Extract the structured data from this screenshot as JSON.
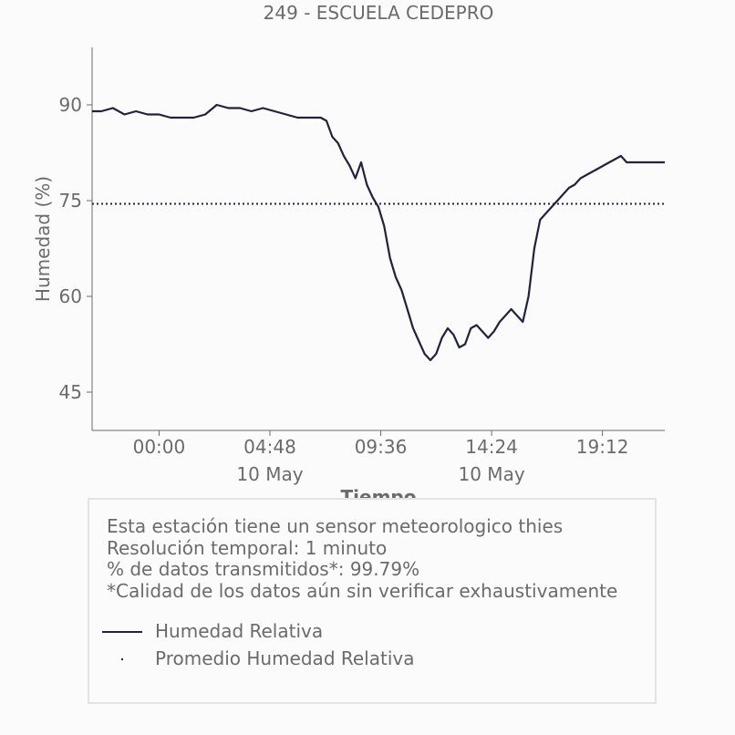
{
  "chart_data": {
    "type": "line",
    "title": "249 - ESCUELA CEDEPRO",
    "xlabel": "Tiempo",
    "ylabel": "Humedad (%)",
    "x_unit": "time of day (10 May)",
    "xlim": [
      "21:06",
      "21:54 (+1 day)"
    ],
    "ylim": [
      39,
      99
    ],
    "x_ticks": [
      "00:00",
      "04:48",
      "09:36",
      "14:24",
      "19:12"
    ],
    "x_tick_date_labels": [
      {
        "at": "04:48",
        "text": "10 May"
      },
      {
        "at": "14:24",
        "text": "10 May"
      }
    ],
    "y_ticks": [
      45,
      60,
      75,
      90
    ],
    "grid": false,
    "series": [
      {
        "name": "Humedad Relativa",
        "color": "#22223f",
        "style": "solid",
        "x": [
          "21:06",
          "21:30",
          "22:00",
          "22:30",
          "23:00",
          "23:30",
          "00:00",
          "00:30",
          "01:00",
          "01:30",
          "02:00",
          "02:30",
          "03:00",
          "03:30",
          "04:00",
          "04:30",
          "05:00",
          "05:30",
          "06:00",
          "06:30",
          "07:00",
          "07:15",
          "07:30",
          "07:45",
          "08:00",
          "08:15",
          "08:30",
          "08:45",
          "09:00",
          "09:15",
          "09:30",
          "09:45",
          "10:00",
          "10:15",
          "10:30",
          "10:45",
          "11:00",
          "11:15",
          "11:30",
          "11:45",
          "12:00",
          "12:15",
          "12:30",
          "12:45",
          "13:00",
          "13:15",
          "13:30",
          "13:45",
          "14:00",
          "14:15",
          "14:30",
          "14:45",
          "15:00",
          "15:15",
          "15:30",
          "15:45",
          "16:00",
          "16:15",
          "16:30",
          "16:45",
          "17:00",
          "17:15",
          "17:30",
          "17:45",
          "18:00",
          "18:15",
          "18:30",
          "18:45",
          "19:00",
          "19:15",
          "19:30",
          "19:45",
          "20:00",
          "20:15",
          "20:30",
          "20:45",
          "21:00",
          "21:15",
          "21:30",
          "21:54"
        ],
        "values": [
          89,
          89,
          89.5,
          88.5,
          89,
          88.5,
          88.5,
          88,
          88,
          88,
          88.5,
          90,
          89.5,
          89.5,
          89,
          89.5,
          89,
          88.5,
          88,
          88,
          88,
          87.5,
          85,
          84,
          82,
          80.5,
          78.5,
          81,
          77.5,
          75.5,
          74,
          71,
          66,
          63,
          61,
          58,
          55,
          53,
          51,
          50,
          51,
          53.5,
          55,
          54,
          52,
          52.5,
          55,
          55.5,
          54.5,
          53.5,
          54.5,
          56,
          57,
          58,
          57,
          56,
          60,
          67.5,
          72,
          73,
          74,
          75,
          76,
          77,
          77.5,
          78.5,
          79,
          79.5,
          80,
          80.5,
          81,
          81.5,
          82,
          81,
          81,
          81,
          81,
          81,
          81,
          81
        ]
      },
      {
        "name": "Promedio Humedad Relativa",
        "color": "#22223f",
        "style": "dotted",
        "value": 74.5
      }
    ],
    "legend": "inside info box, bottom-left"
  },
  "info": {
    "line1": "Esta estación tiene un sensor meteorologico thies",
    "line2": "Resolución temporal: 1 minuto",
    "line3": "% de datos transmitidos*: 99.79%",
    "line4": "*Calidad de los datos aún sin verificar exhaustivamente"
  },
  "colors": {
    "line": "#22223f",
    "text": "#6b6b6b",
    "axis": "#6b6b6b",
    "background": "#fbfbfb"
  }
}
